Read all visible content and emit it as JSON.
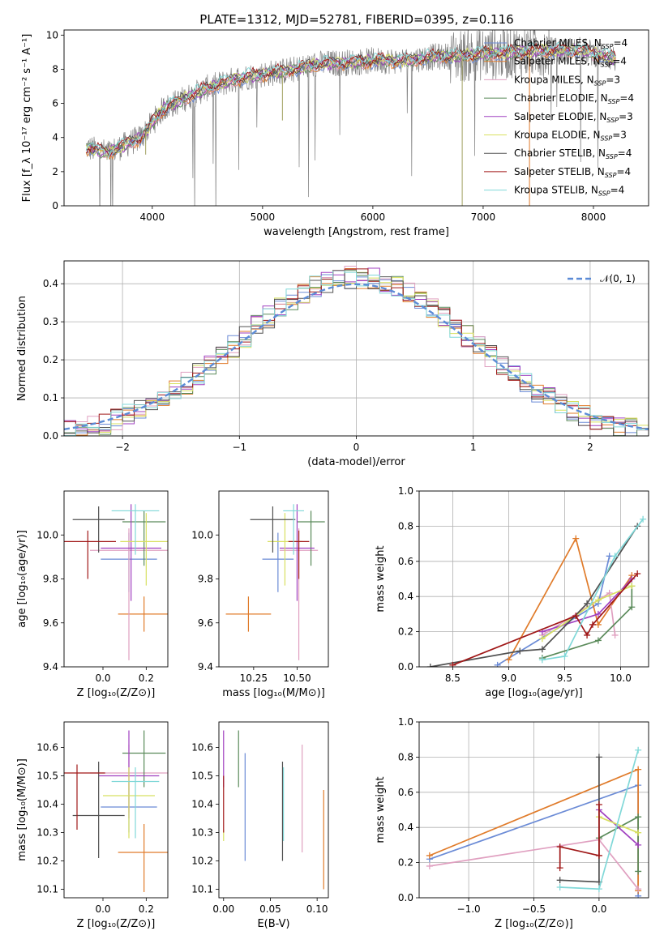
{
  "title": "PLATE=1312, MJD=52781, FIBERID=0395, z=0.116",
  "colors": {
    "MILES": [
      "#6b8bd6",
      "#e07b2a",
      "#e0a0c0"
    ],
    "ELODIE": [
      "#5a8a5a",
      "#a040c0",
      "#d8e060"
    ],
    "STELIB": [
      "#505050",
      "#a01818",
      "#80d8d8"
    ],
    "data": "#808080",
    "normal": "#5b8bd6"
  },
  "chart_data": [
    {
      "id": "spectrum",
      "type": "line",
      "xlabel": "wavelength [Angstrom, rest frame]",
      "ylabel": "Flux [f_λ 10⁻¹⁷ erg cm⁻² s⁻¹ A⁻¹]",
      "xlim": [
        3200,
        8500
      ],
      "ylim": [
        0,
        10.3
      ],
      "xticks": [
        "4000",
        "5000",
        "6000",
        "7000",
        "8000"
      ],
      "yticks": [
        "0",
        "2",
        "4",
        "6",
        "8",
        "10"
      ],
      "continuum": {
        "x": [
          3400,
          3600,
          3900,
          4100,
          4300,
          4500,
          4800,
          5000,
          5300,
          5500,
          5800,
          6000,
          6300,
          6500,
          6800,
          7000,
          7300,
          7600,
          7900,
          8200
        ],
        "y": [
          3.4,
          3.1,
          4.0,
          5.7,
          6.3,
          6.9,
          7.5,
          7.7,
          8.0,
          8.3,
          8.4,
          8.5,
          8.5,
          8.7,
          8.8,
          8.9,
          9.0,
          9.1,
          9.1,
          8.6
        ]
      },
      "legend": [
        {
          "label": "Chabrier MILES, N",
          "sub": "SSP",
          "n": "=4",
          "color": "#6b8bd6"
        },
        {
          "label": "Salpeter MILES, N",
          "sub": "SSP",
          "n": "=4",
          "color": "#e07b2a"
        },
        {
          "label": "Kroupa MILES, N",
          "sub": "SSP",
          "n": "=3",
          "color": "#e0a0c0"
        },
        {
          "label": "Chabrier ELODIE, N",
          "sub": "SSP",
          "n": "=4",
          "color": "#5a8a5a"
        },
        {
          "label": "Salpeter ELODIE, N",
          "sub": "SSP",
          "n": "=3",
          "color": "#a040c0"
        },
        {
          "label": "Kroupa ELODIE, N",
          "sub": "SSP",
          "n": "=3",
          "color": "#d8e060"
        },
        {
          "label": "Chabrier STELIB, N",
          "sub": "SSP",
          "n": "=4",
          "color": "#505050"
        },
        {
          "label": "Salpeter STELIB, N",
          "sub": "SSP",
          "n": "=4",
          "color": "#a01818"
        },
        {
          "label": "Kroupa STELIB, N",
          "sub": "SSP",
          "n": "=4",
          "color": "#80d8d8"
        }
      ]
    },
    {
      "id": "residuals",
      "type": "histogram",
      "xlabel": "(data-model)/error",
      "ylabel": "Normed distribution",
      "xlim": [
        -2.5,
        2.5
      ],
      "ylim": [
        0,
        0.46
      ],
      "xticks": [
        "−2",
        "−1",
        "0",
        "1",
        "2"
      ],
      "yticks": [
        "0.0",
        "0.1",
        "0.2",
        "0.3",
        "0.4"
      ],
      "grid": true,
      "legend": "$\\mathcal{N}(0,1)$",
      "legend_label": "𝒩(0, 1)",
      "legend_position": "top-right",
      "bins": 50
    },
    {
      "id": "age_vs_Z",
      "type": "scatter",
      "xlabel": "Z [log₁₀(Z/Z⊙)]",
      "ylabel": "age  [log₁₀(age/yr)]",
      "xlim": [
        -0.18,
        0.3
      ],
      "ylim": [
        9.4,
        10.2
      ],
      "xticks": [
        "0.0",
        "0.2"
      ],
      "yticks": [
        "9.4",
        "9.6",
        "9.8",
        "10.0"
      ],
      "points": [
        {
          "x": 0.12,
          "y": 9.89,
          "xerr": 0.13,
          "yerr": [
            0.15,
            0.12
          ],
          "color": "#6b8bd6"
        },
        {
          "x": 0.19,
          "y": 9.64,
          "xerr": 0.12,
          "yerr": [
            0.08,
            0.08
          ],
          "color": "#e07b2a"
        },
        {
          "x": 0.12,
          "y": 9.93,
          "xerr": 0.18,
          "yerr": [
            0.5,
            0.1
          ],
          "color": "#e0a0c0"
        },
        {
          "x": 0.19,
          "y": 10.06,
          "xerr": 0.1,
          "yerr": [
            0.2,
            0.05
          ],
          "color": "#5a8a5a"
        },
        {
          "x": 0.13,
          "y": 9.94,
          "xerr": 0.14,
          "yerr": [
            0.24,
            0.2
          ],
          "color": "#a040c0"
        },
        {
          "x": 0.2,
          "y": 9.97,
          "xerr": 0.12,
          "yerr": [
            0.2,
            0.13
          ],
          "color": "#d8e060"
        },
        {
          "x": -0.02,
          "y": 10.07,
          "xerr": 0.12,
          "yerr": [
            0.15,
            0.06
          ],
          "color": "#505050"
        },
        {
          "x": -0.07,
          "y": 9.97,
          "xerr": 0.13,
          "yerr": [
            0.17,
            0.05
          ],
          "color": "#a01818"
        },
        {
          "x": 0.15,
          "y": 10.11,
          "xerr": 0.11,
          "yerr": [
            0.2,
            0.03
          ],
          "color": "#80d8d8"
        }
      ]
    },
    {
      "id": "age_vs_mass",
      "type": "scatter",
      "xlabel": "mass [log₁₀(M/M⊙)]",
      "ylabel": "",
      "xlim": [
        10.05,
        10.68
      ],
      "ylim": [
        9.4,
        10.2
      ],
      "xticks": [
        "10.25",
        "10.50"
      ],
      "yticks": [
        "9.4",
        "9.6",
        "9.8",
        "10.0"
      ],
      "points": [
        {
          "x": 10.39,
          "y": 9.89,
          "xerr": 0.09,
          "yerr": [
            0.15,
            0.12
          ],
          "color": "#6b8bd6"
        },
        {
          "x": 10.22,
          "y": 9.64,
          "xerr": 0.13,
          "yerr": [
            0.08,
            0.08
          ],
          "color": "#e07b2a"
        },
        {
          "x": 10.51,
          "y": 9.93,
          "xerr": 0.11,
          "yerr": [
            0.5,
            0.1
          ],
          "color": "#e0a0c0"
        },
        {
          "x": 10.58,
          "y": 10.06,
          "xerr": 0.08,
          "yerr": [
            0.2,
            0.05
          ],
          "color": "#5a8a5a"
        },
        {
          "x": 10.5,
          "y": 9.94,
          "xerr": 0.1,
          "yerr": [
            0.24,
            0.2
          ],
          "color": "#a040c0"
        },
        {
          "x": 10.43,
          "y": 9.97,
          "xerr": 0.1,
          "yerr": [
            0.2,
            0.13
          ],
          "color": "#d8e060"
        },
        {
          "x": 10.36,
          "y": 10.07,
          "xerr": 0.13,
          "yerr": [
            0.15,
            0.06
          ],
          "color": "#505050"
        },
        {
          "x": 10.51,
          "y": 9.97,
          "xerr": 0.06,
          "yerr": [
            0.17,
            0.05
          ],
          "color": "#a01818"
        },
        {
          "x": 10.48,
          "y": 10.11,
          "xerr": 0.06,
          "yerr": [
            0.2,
            0.03
          ],
          "color": "#80d8d8"
        }
      ]
    },
    {
      "id": "weight_vs_age",
      "type": "line",
      "xlabel": "age  [log₁₀(age/yr)]",
      "ylabel": "mass weight",
      "xlim": [
        8.2,
        10.25
      ],
      "ylim": [
        0,
        1.0
      ],
      "xticks": [
        "8.5",
        "9.0",
        "9.5",
        "10.0"
      ],
      "yticks": [
        "0.0",
        "0.2",
        "0.4",
        "0.6",
        "0.8",
        "1.0"
      ],
      "grid": true,
      "series": [
        {
          "color": "#6b8bd6",
          "x": [
            8.9,
            9.8,
            9.9
          ],
          "y": [
            0.01,
            0.36,
            0.63
          ]
        },
        {
          "color": "#e07b2a",
          "x": [
            9.0,
            9.6,
            9.8,
            10.1
          ],
          "y": [
            0.04,
            0.73,
            0.24,
            0.52
          ]
        },
        {
          "color": "#e0a0c0",
          "x": [
            9.3,
            9.9,
            9.95
          ],
          "y": [
            0.18,
            0.42,
            0.18
          ]
        },
        {
          "color": "#5a8a5a",
          "x": [
            9.3,
            9.8,
            10.1,
            10.1
          ],
          "y": [
            0.05,
            0.15,
            0.34,
            0.46
          ]
        },
        {
          "color": "#a040c0",
          "x": [
            9.3,
            9.8,
            10.1
          ],
          "y": [
            0.2,
            0.3,
            0.5
          ]
        },
        {
          "color": "#d8e060",
          "x": [
            9.3,
            9.8,
            10.1
          ],
          "y": [
            0.16,
            0.38,
            0.46
          ]
        },
        {
          "color": "#505050",
          "x": [
            8.3,
            9.1,
            9.3,
            9.7,
            10.15
          ],
          "y": [
            0.0,
            0.09,
            0.1,
            0.36,
            0.8
          ]
        },
        {
          "color": "#a01818",
          "x": [
            8.5,
            9.6,
            9.7,
            9.75,
            10.15
          ],
          "y": [
            0.01,
            0.29,
            0.18,
            0.24,
            0.53
          ]
        },
        {
          "color": "#80d8d8",
          "x": [
            9.3,
            9.5,
            9.95,
            10.2
          ],
          "y": [
            0.04,
            0.06,
            0.63,
            0.84
          ]
        }
      ]
    },
    {
      "id": "mass_vs_Z",
      "type": "scatter",
      "xlabel": "Z [log₁₀(Z/Z⊙)]",
      "ylabel": "mass [log₁₀(M/M⊙)]",
      "xlim": [
        -0.18,
        0.3
      ],
      "ylim": [
        10.07,
        10.69
      ],
      "xticks": [
        "0.0",
        "0.2"
      ],
      "yticks": [
        "10.1",
        "10.2",
        "10.3",
        "10.4",
        "10.5",
        "10.6"
      ],
      "points": [
        {
          "x": 0.12,
          "y": 10.39,
          "xerr": 0.13,
          "yerr": [
            0.09,
            0.09
          ],
          "color": "#6b8bd6"
        },
        {
          "x": 0.19,
          "y": 10.23,
          "xerr": 0.12,
          "yerr": [
            0.14,
            0.1
          ],
          "color": "#e07b2a"
        },
        {
          "x": 0.12,
          "y": 10.51,
          "xerr": 0.18,
          "yerr": [
            0.14,
            0.1
          ],
          "color": "#e0a0c0"
        },
        {
          "x": 0.19,
          "y": 10.58,
          "xerr": 0.1,
          "yerr": [
            0.12,
            0.08
          ],
          "color": "#5a8a5a"
        },
        {
          "x": 0.12,
          "y": 10.5,
          "xerr": 0.14,
          "yerr": [
            0.15,
            0.16
          ],
          "color": "#a040c0"
        },
        {
          "x": 0.12,
          "y": 10.43,
          "xerr": 0.12,
          "yerr": [
            0.15,
            0.1
          ],
          "color": "#d8e060"
        },
        {
          "x": -0.02,
          "y": 10.36,
          "xerr": 0.12,
          "yerr": [
            0.15,
            0.19
          ],
          "color": "#505050"
        },
        {
          "x": -0.12,
          "y": 10.51,
          "xerr": 0.13,
          "yerr": [
            0.2,
            0.03
          ],
          "color": "#a01818"
        },
        {
          "x": 0.15,
          "y": 10.48,
          "xerr": 0.11,
          "yerr": [
            0.2,
            0.05
          ],
          "color": "#80d8d8"
        }
      ]
    },
    {
      "id": "mass_vs_ebv",
      "type": "scatter",
      "xlabel": "E(B-V)",
      "ylabel": "",
      "xlim": [
        -0.005,
        0.112
      ],
      "ylim": [
        10.07,
        10.69
      ],
      "xticks": [
        "0.00",
        "0.05",
        "0.10"
      ],
      "yticks": [
        "10.1",
        "10.2",
        "10.3",
        "10.4",
        "10.5",
        "10.6"
      ],
      "points": [
        {
          "x": 0.023,
          "y": 10.39,
          "xerr": 0.0,
          "yerr": [
            0.19,
            0.19
          ],
          "color": "#6b8bd6"
        },
        {
          "x": 0.107,
          "y": 10.28,
          "xerr": 0.0,
          "yerr": [
            0.18,
            0.17
          ],
          "color": "#e07b2a"
        },
        {
          "x": 0.084,
          "y": 10.42,
          "xerr": 0.0,
          "yerr": [
            0.19,
            0.19
          ],
          "color": "#e0a0c0"
        },
        {
          "x": 0.016,
          "y": 10.56,
          "xerr": 0.0,
          "yerr": [
            0.1,
            0.1
          ],
          "color": "#5a8a5a"
        },
        {
          "x": 0.0,
          "y": 10.56,
          "xerr": 0.0,
          "yerr": [
            0.1,
            0.1
          ],
          "color": "#a040c0"
        },
        {
          "x": 0.0,
          "y": 10.29,
          "xerr": 0.0,
          "yerr": [
            0.02,
            0.02
          ],
          "color": "#d8e060"
        },
        {
          "x": 0.063,
          "y": 10.38,
          "xerr": 0.0,
          "yerr": [
            0.18,
            0.17
          ],
          "color": "#505050"
        },
        {
          "x": 0.0,
          "y": 10.4,
          "xerr": 0.0,
          "yerr": [
            0.1,
            0.1
          ],
          "color": "#a01818"
        },
        {
          "x": 0.064,
          "y": 10.4,
          "xerr": 0.0,
          "yerr": [
            0.13,
            0.13
          ],
          "color": "#80d8d8"
        }
      ]
    },
    {
      "id": "weight_vs_Z",
      "type": "line",
      "xlabel": "Z [log₁₀(Z/Z⊙)]",
      "ylabel": "mass weight",
      "xlim": [
        -1.38,
        0.38
      ],
      "ylim": [
        0,
        1.0
      ],
      "xticks": [
        "−1.0",
        "−0.5",
        "0.0"
      ],
      "yticks": [
        "0.0",
        "0.2",
        "0.4",
        "0.6",
        "0.8",
        "1.0"
      ],
      "grid": true,
      "series": [
        {
          "color": "#6b8bd6",
          "x": [
            -1.3,
            0.3,
            0.3
          ],
          "y": [
            0.22,
            0.64,
            0.01
          ]
        },
        {
          "color": "#e07b2a",
          "x": [
            -1.3,
            0.3,
            0.3
          ],
          "y": [
            0.24,
            0.73,
            0.04
          ]
        },
        {
          "color": "#e0a0c0",
          "x": [
            -1.3,
            0.0,
            0.3
          ],
          "y": [
            0.18,
            0.33,
            0.05
          ]
        },
        {
          "color": "#5a8a5a",
          "x": [
            0.0,
            0.3,
            0.3
          ],
          "y": [
            0.34,
            0.46,
            0.15
          ]
        },
        {
          "color": "#a040c0",
          "x": [
            0.0,
            0.3
          ],
          "y": [
            0.5,
            0.3
          ]
        },
        {
          "color": "#d8e060",
          "x": [
            0.0,
            0.3
          ],
          "y": [
            0.46,
            0.37
          ]
        },
        {
          "color": "#505050",
          "x": [
            -0.3,
            0.0,
            0.0
          ],
          "y": [
            0.1,
            0.09,
            0.8
          ]
        },
        {
          "color": "#a01818",
          "x": [
            -0.3,
            -0.3,
            0.0,
            0.0
          ],
          "y": [
            0.17,
            0.29,
            0.24,
            0.53
          ]
        },
        {
          "color": "#80d8d8",
          "x": [
            -0.3,
            0.0,
            0.3
          ],
          "y": [
            0.06,
            0.05,
            0.84
          ]
        }
      ]
    }
  ]
}
